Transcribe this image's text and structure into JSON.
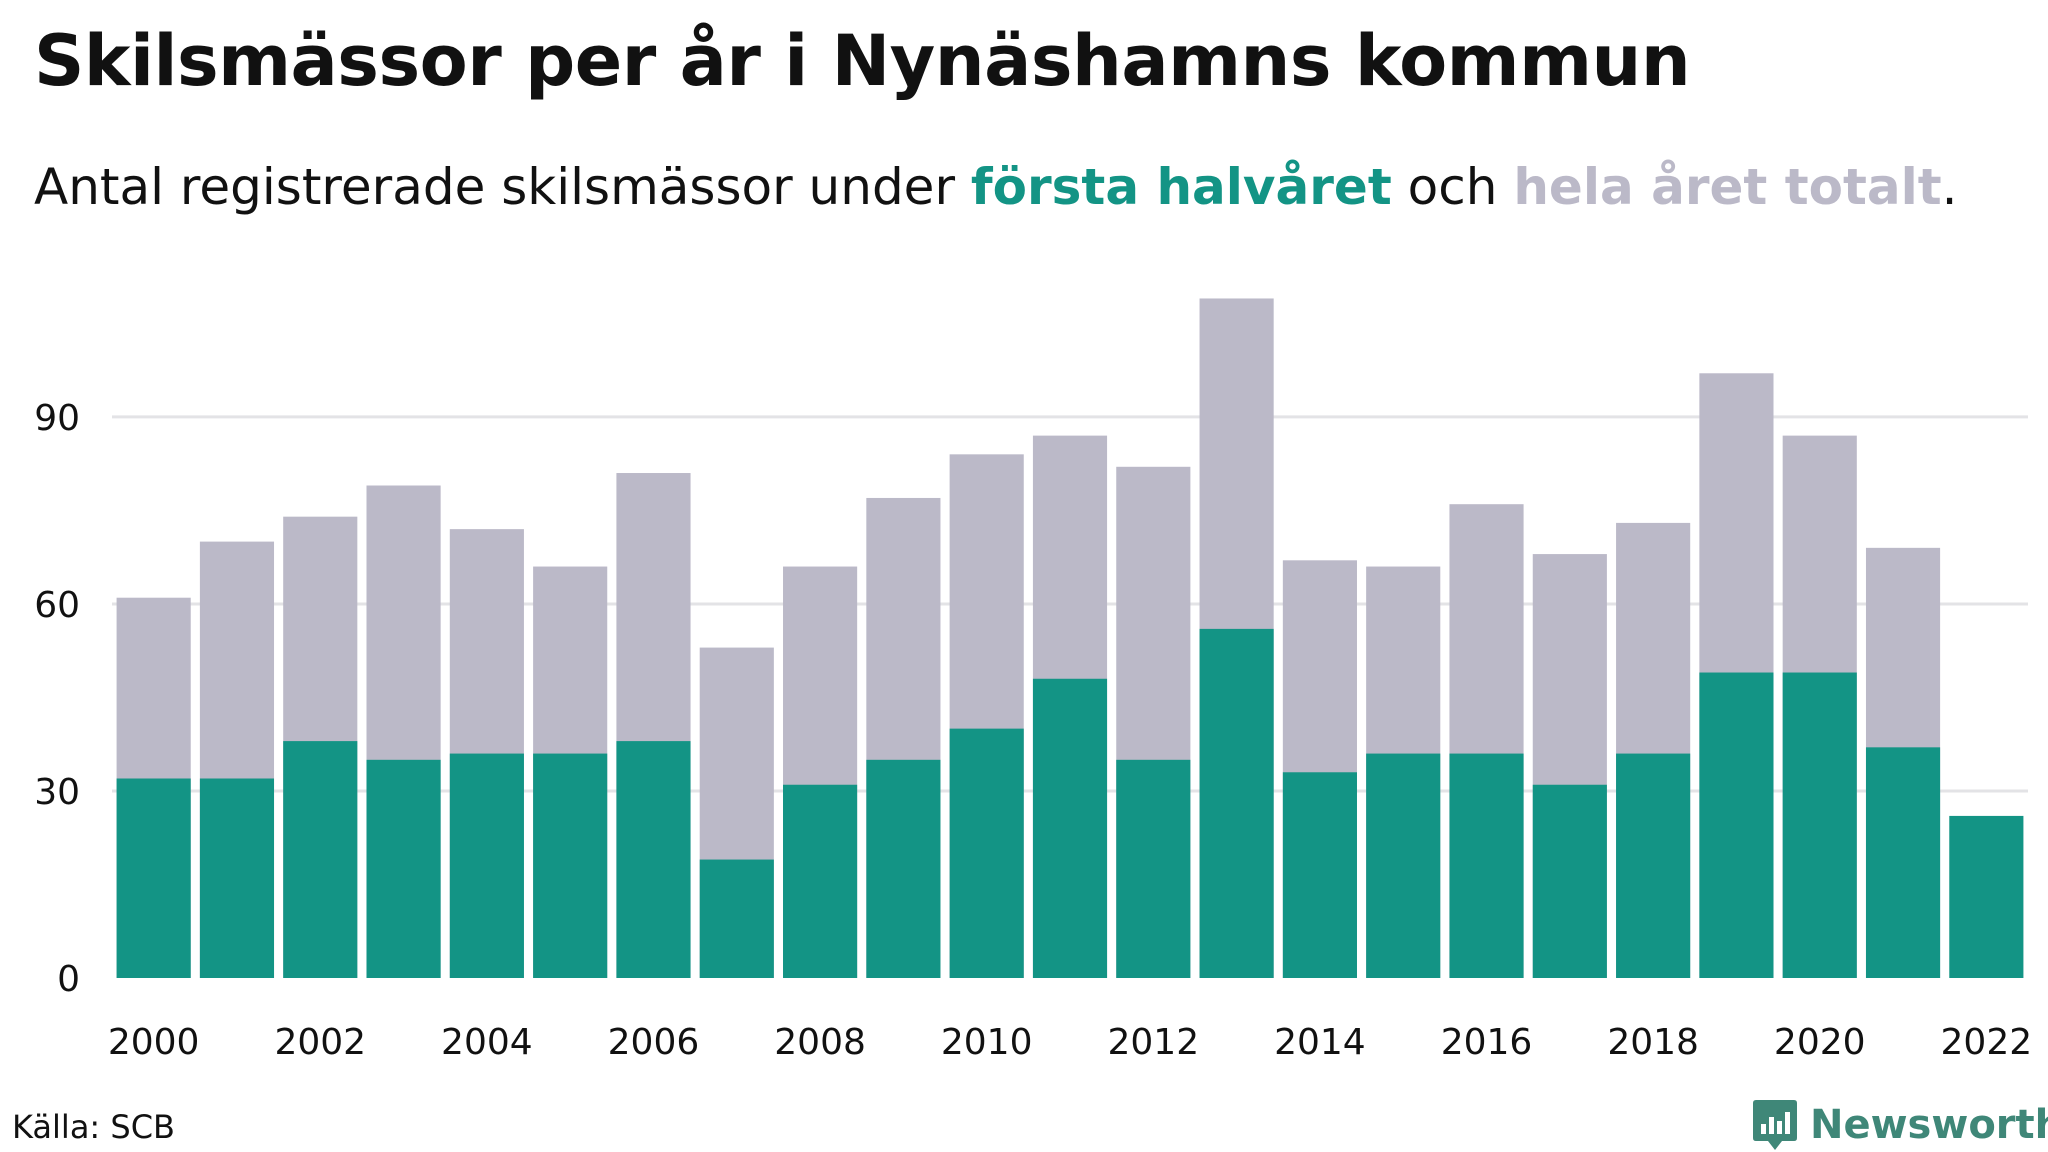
{
  "header": {
    "title": "Skilsmässor per år i Nynäshamns kommun",
    "subtitle_prefix": "Antal registrerade skilsmässor under ",
    "subtitle_h1": "första halvåret",
    "subtitle_mid": " och ",
    "subtitle_h2": "hela året totalt",
    "subtitle_suffix": "."
  },
  "footer": {
    "source": "Källa: SCB",
    "brand": "Newsworthy",
    "brand_icon": "newsworthy-logo-icon"
  },
  "colors": {
    "first_half": "#139485",
    "full_year": "#bbb9c8",
    "grid": "#e3e3e6",
    "brand": "#3f8778"
  },
  "chart_data": {
    "type": "bar",
    "overlapping": true,
    "categories": [
      "2000",
      "2001",
      "2002",
      "2003",
      "2004",
      "2005",
      "2006",
      "2007",
      "2008",
      "2009",
      "2010",
      "2011",
      "2012",
      "2013",
      "2014",
      "2015",
      "2016",
      "2017",
      "2018",
      "2019",
      "2020",
      "2021",
      "2022"
    ],
    "x_tick_labels": [
      "2000",
      "2002",
      "2004",
      "2006",
      "2008",
      "2010",
      "2012",
      "2014",
      "2016",
      "2018",
      "2020",
      "2022"
    ],
    "series": [
      {
        "name": "hela året totalt",
        "color": "#bbb9c8",
        "values": [
          61,
          70,
          74,
          79,
          72,
          66,
          81,
          53,
          66,
          77,
          84,
          87,
          82,
          109,
          67,
          66,
          76,
          68,
          73,
          97,
          87,
          69,
          null
        ]
      },
      {
        "name": "första halvåret",
        "color": "#139485",
        "values": [
          32,
          32,
          38,
          35,
          36,
          36,
          38,
          19,
          31,
          35,
          40,
          48,
          35,
          56,
          33,
          36,
          36,
          31,
          36,
          49,
          49,
          37,
          26
        ]
      }
    ],
    "y_ticks": [
      0,
      30,
      60,
      90
    ],
    "ylim": [
      0,
      111
    ],
    "grid": true,
    "legend": "in subtitle"
  }
}
